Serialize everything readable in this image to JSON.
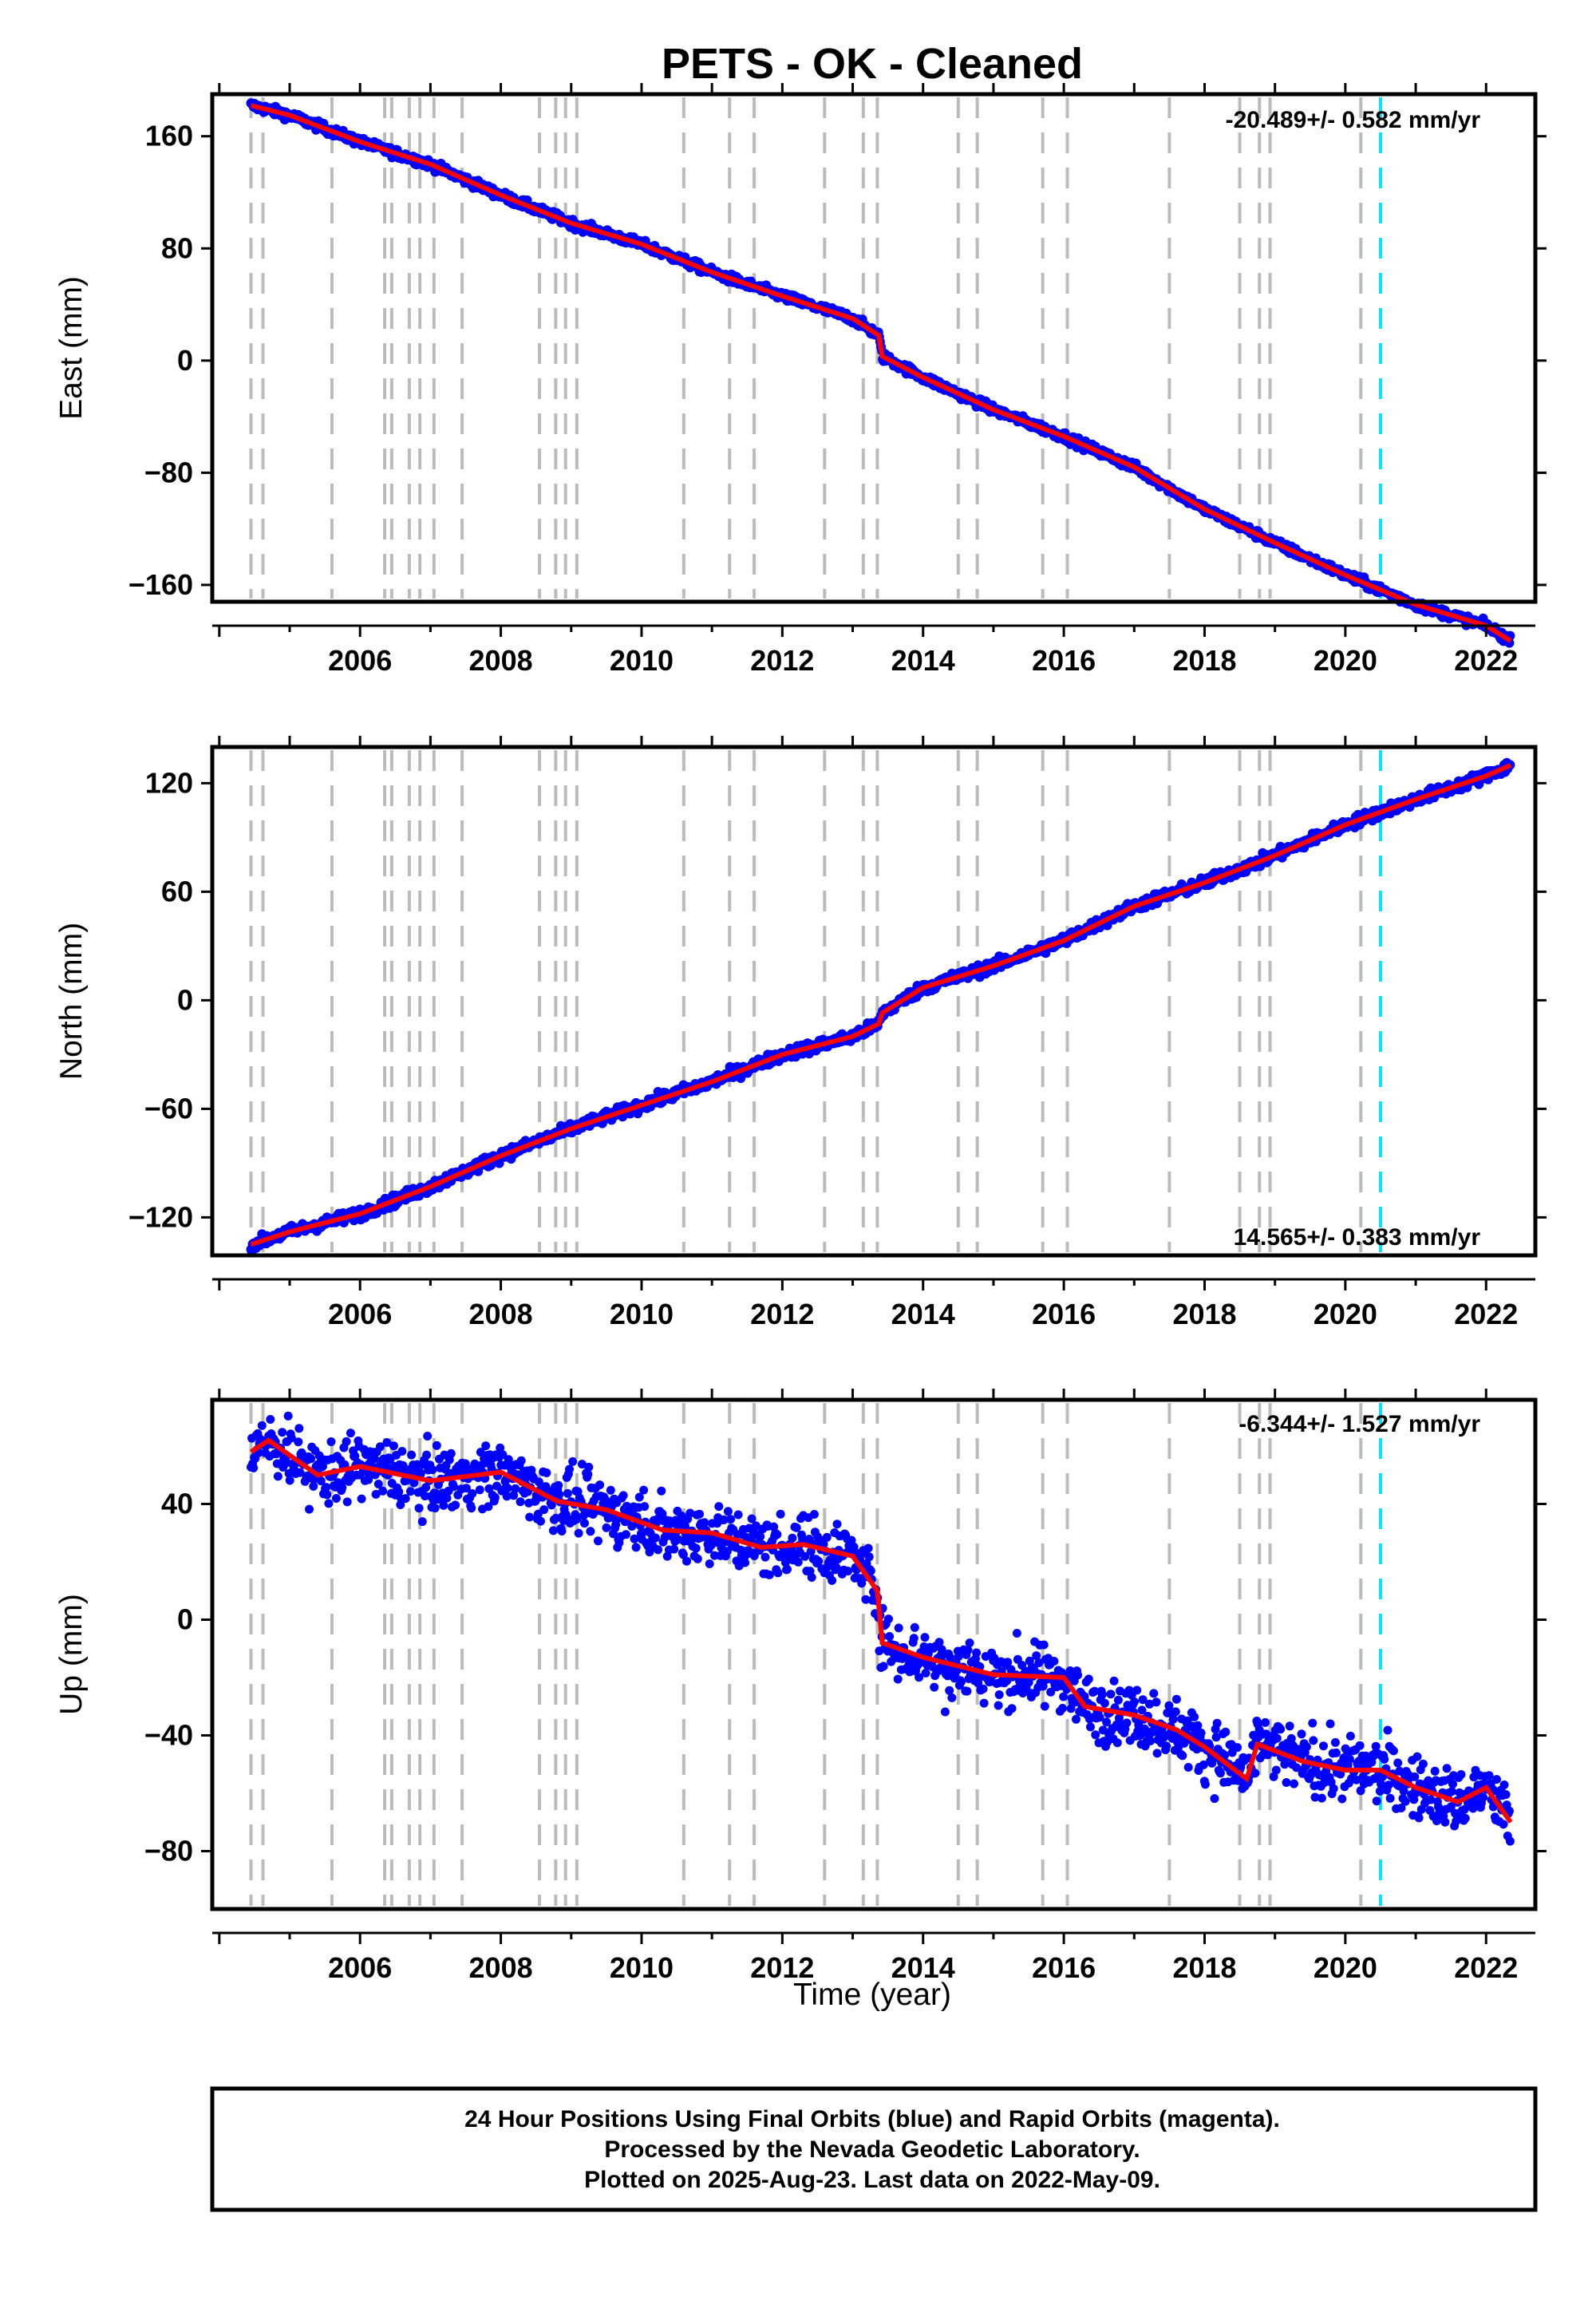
{
  "title": "PETS  - OK - Cleaned",
  "colors": {
    "final": "#0000ff",
    "rapid": "#ff00ff",
    "model": "#ff0000",
    "event": "#bbbbbb",
    "antenna": "#00e5ff"
  },
  "chart_data": [
    {
      "type": "scatter",
      "ylabel": "East (mm)",
      "rate": "-20.489+/- 0.582 mm/yr",
      "xlim": [
        2003.9,
        2022.7
      ],
      "ylim": [
        -172,
        190
      ],
      "yticks": [
        -160,
        -80,
        0,
        80,
        160
      ],
      "series": [
        {
          "x": [
            2004.45,
            2005,
            2006,
            2007,
            2008,
            2009,
            2010,
            2011,
            2012,
            2013,
            2013.37,
            2013.42,
            2014,
            2015,
            2016,
            2017,
            2018,
            2019,
            2020,
            2021,
            2022,
            2022.35
          ],
          "y": [
            182,
            175,
            156,
            140,
            118,
            98,
            83,
            63,
            46,
            30,
            18,
            3,
            -12,
            -35,
            -54,
            -76,
            -106,
            -130,
            -153,
            -174,
            -189,
            -200
          ]
        }
      ]
    },
    {
      "type": "scatter",
      "ylabel": "North (mm)",
      "rate": "14.565+/- 0.383 mm/yr",
      "xlim": [
        2003.9,
        2022.7
      ],
      "ylim": [
        -141,
        140
      ],
      "yticks": [
        -120,
        -60,
        0,
        60,
        120
      ],
      "series": [
        {
          "x": [
            2004.45,
            2005,
            2006,
            2007,
            2008,
            2009,
            2010,
            2011,
            2012,
            2013,
            2013.37,
            2013.42,
            2014,
            2015,
            2016,
            2017,
            2018,
            2019,
            2020,
            2021,
            2022,
            2022.35
          ],
          "y": [
            -135,
            -128,
            -118,
            -103,
            -86,
            -71,
            -58,
            -45,
            -30,
            -20,
            -13,
            -7,
            7,
            19,
            33,
            52,
            65,
            80,
            97,
            111,
            124,
            130
          ]
        }
      ]
    },
    {
      "type": "scatter",
      "ylabel": "Up (mm)",
      "xlabel": "Time (year)",
      "rate": "-6.344+/- 1.527 mm/yr",
      "xlim": [
        2003.9,
        2022.7
      ],
      "ylim": [
        -100,
        76
      ],
      "yticks": [
        -80,
        -40,
        0,
        40
      ],
      "series": [
        {
          "x": [
            2004.45,
            2004.7,
            2005.4,
            2006,
            2007,
            2008,
            2008.8,
            2009.5,
            2010.3,
            2011,
            2011.7,
            2012.3,
            2013,
            2013.35,
            2013.42,
            2014,
            2015,
            2016,
            2016.3,
            2017,
            2017.6,
            2018,
            2018.6,
            2018.75,
            2019.4,
            2020,
            2020.5,
            2021,
            2021.6,
            2022,
            2022.35
          ],
          "y": [
            58,
            62,
            50,
            53,
            48,
            51,
            41,
            38,
            31,
            30,
            25,
            26,
            22,
            10,
            -8,
            -13,
            -19,
            -20,
            -30,
            -33,
            -38,
            -44,
            -55,
            -43,
            -49,
            -52,
            -52,
            -58,
            -63,
            -58,
            -70
          ]
        }
      ]
    }
  ],
  "x_ticks": [
    2006,
    2008,
    2010,
    2012,
    2014,
    2016,
    2018,
    2020,
    2022
  ],
  "event_lines": [
    2004.45,
    2004.62,
    2005.6,
    2006.35,
    2006.45,
    2006.7,
    2006.85,
    2007.05,
    2007.45,
    2008.55,
    2008.78,
    2008.92,
    2009.08,
    2010.6,
    2011.25,
    2011.6,
    2012.6,
    2013.15,
    2013.35,
    2014.5,
    2014.77,
    2015.7,
    2016.05,
    2017.5,
    2018.5,
    2018.78,
    2018.93,
    2020.22
  ],
  "antenna_lines": [
    2020.5
  ],
  "footer": [
    "24 Hour Positions Using Final Orbits (blue) and Rapid Orbits (magenta).",
    "Processed by the Nevada Geodetic Laboratory.",
    "Plotted on 2025-Aug-23. Last data on 2022-May-09."
  ]
}
